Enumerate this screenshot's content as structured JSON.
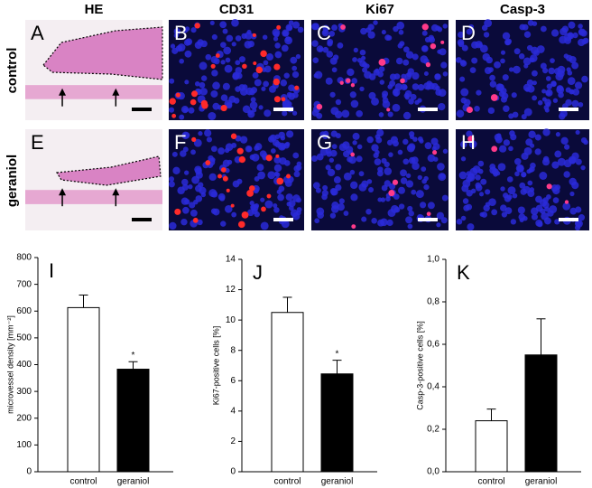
{
  "column_headers": [
    "HE",
    "CD31",
    "Ki67",
    "Casp-3"
  ],
  "row_labels": [
    "control",
    "geraniol"
  ],
  "panel_letters": [
    "A",
    "B",
    "C",
    "D",
    "E",
    "F",
    "G",
    "H"
  ],
  "chart_data": [
    {
      "type": "bar",
      "panel": "I",
      "ylabel": "microvessel density [mm⁻²]",
      "categories": [
        "control",
        "geraniol"
      ],
      "values": [
        613,
        383
      ],
      "errors": [
        47,
        28
      ],
      "colors": [
        "#ffffff",
        "#000000"
      ],
      "significance": [
        null,
        "*"
      ],
      "ylim": [
        0,
        800
      ],
      "yticks": [
        0,
        100,
        200,
        300,
        400,
        500,
        600,
        700,
        800
      ]
    },
    {
      "type": "bar",
      "panel": "J",
      "ylabel": "Ki67-positive cells [%]",
      "categories": [
        "control",
        "geraniol"
      ],
      "values": [
        10.5,
        6.45
      ],
      "errors": [
        1.0,
        0.9
      ],
      "colors": [
        "#ffffff",
        "#000000"
      ],
      "significance": [
        null,
        "*"
      ],
      "ylim": [
        0,
        14
      ],
      "yticks": [
        0,
        2,
        4,
        6,
        8,
        10,
        12,
        14
      ]
    },
    {
      "type": "bar",
      "panel": "K",
      "ylabel": "Casp-3-positive cells [%]",
      "categories": [
        "control",
        "geraniol"
      ],
      "values": [
        0.24,
        0.55
      ],
      "errors": [
        0.055,
        0.17
      ],
      "colors": [
        "#ffffff",
        "#000000"
      ],
      "significance": [
        null,
        null
      ],
      "ylim": [
        0,
        1.0
      ],
      "yticks": [
        {
          "value": 0,
          "label": "0,0"
        },
        {
          "value": 0.2,
          "label": "0,2"
        },
        {
          "value": 0.4,
          "label": "0,4"
        },
        {
          "value": 0.6,
          "label": "0,6"
        },
        {
          "value": 0.8,
          "label": "0,8"
        },
        {
          "value": 1.0,
          "label": "1,0"
        }
      ]
    }
  ]
}
